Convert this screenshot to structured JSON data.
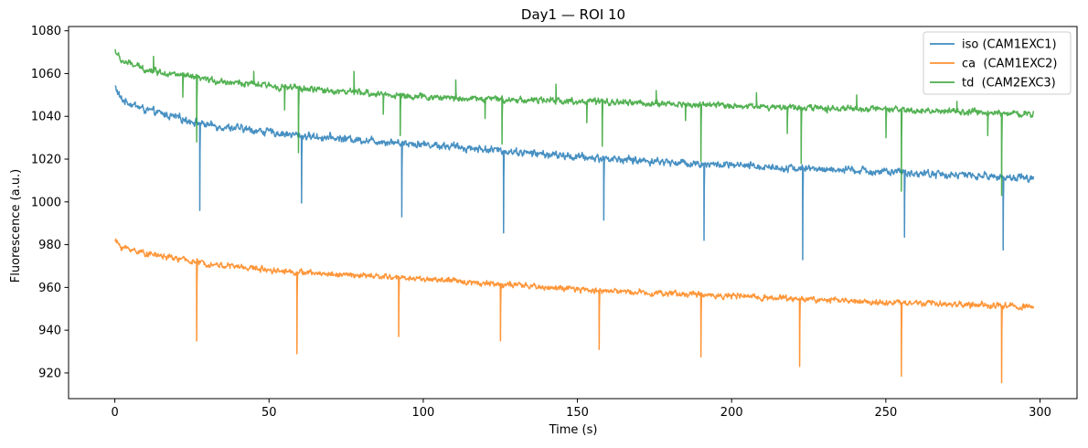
{
  "chart_data": {
    "type": "line",
    "title": "Day1 — ROI 10",
    "xlabel": "Time (s)",
    "ylabel": "Fluorescence (a.u.)",
    "xlim": [
      -15,
      312
    ],
    "ylim": [
      908,
      1082
    ],
    "x_ticks": [
      0,
      50,
      100,
      150,
      200,
      250,
      300
    ],
    "y_ticks": [
      920,
      940,
      960,
      980,
      1000,
      1020,
      1040,
      1060,
      1080
    ],
    "x_tick_labels": [
      "0",
      "50",
      "100",
      "150",
      "200",
      "250",
      "300"
    ],
    "y_tick_labels": [
      "920",
      "940",
      "960",
      "980",
      "1000",
      "1020",
      "1040",
      "1060",
      "1080"
    ],
    "legend_position": "top-right",
    "grid": false,
    "series": [
      {
        "name": "iso (CAM1EXC1)",
        "color": "#1f77b4",
        "baseline_x": [
          0,
          2,
          10,
          30,
          60,
          100,
          150,
          200,
          250,
          298
        ],
        "baseline_y": [
          1054,
          1048,
          1043,
          1036,
          1031,
          1027,
          1021,
          1017,
          1014,
          1011
        ],
        "noise_amplitude": 1.3,
        "dips": [
          {
            "x": 27.5,
            "y": 996
          },
          {
            "x": 60.5,
            "y": 999.5
          },
          {
            "x": 93,
            "y": 993
          },
          {
            "x": 126,
            "y": 985.5
          },
          {
            "x": 158.5,
            "y": 991.5
          },
          {
            "x": 191,
            "y": 982
          },
          {
            "x": 223,
            "y": 973
          },
          {
            "x": 256,
            "y": 983.5
          },
          {
            "x": 288,
            "y": 977.5
          }
        ]
      },
      {
        "name": "ca  (CAM1EXC2)",
        "color": "#ff7f0e",
        "baseline_x": [
          0,
          2,
          10,
          30,
          60,
          100,
          150,
          200,
          250,
          298
        ],
        "baseline_y": [
          982,
          979,
          976,
          971,
          967,
          964,
          959,
          956,
          953,
          951
        ],
        "noise_amplitude": 1.0,
        "dips": [
          {
            "x": 26.5,
            "y": 935
          },
          {
            "x": 59,
            "y": 929
          },
          {
            "x": 92,
            "y": 937
          },
          {
            "x": 125,
            "y": 935
          },
          {
            "x": 157,
            "y": 931
          },
          {
            "x": 190,
            "y": 927.5
          },
          {
            "x": 222,
            "y": 923
          },
          {
            "x": 255,
            "y": 918.5
          },
          {
            "x": 287.5,
            "y": 915.5
          }
        ]
      },
      {
        "name": "td  (CAM2EXC3)",
        "color": "#2ca02c",
        "baseline_x": [
          0,
          2,
          10,
          30,
          60,
          100,
          150,
          200,
          250,
          298
        ],
        "baseline_y": [
          1071,
          1066,
          1062,
          1057,
          1053,
          1049,
          1047,
          1045,
          1043,
          1041
        ],
        "noise_amplitude": 1.1,
        "dips": [
          {
            "x": 26.5,
            "y": 1028
          },
          {
            "x": 59.5,
            "y": 1023
          },
          {
            "x": 92.5,
            "y": 1031
          },
          {
            "x": 125.5,
            "y": 1027
          },
          {
            "x": 158,
            "y": 1026
          },
          {
            "x": 190,
            "y": 1019
          },
          {
            "x": 222.5,
            "y": 1018
          },
          {
            "x": 255,
            "y": 1005
          },
          {
            "x": 287.5,
            "y": 1003
          },
          {
            "x": 22,
            "y": 1049
          },
          {
            "x": 55,
            "y": 1043
          },
          {
            "x": 87,
            "y": 1041
          },
          {
            "x": 120,
            "y": 1039
          },
          {
            "x": 153,
            "y": 1037
          },
          {
            "x": 185,
            "y": 1038
          },
          {
            "x": 218,
            "y": 1032
          },
          {
            "x": 250,
            "y": 1030
          },
          {
            "x": 283,
            "y": 1031
          }
        ],
        "spikes": [
          {
            "x": 12.5,
            "y": 1068
          },
          {
            "x": 45,
            "y": 1061
          },
          {
            "x": 77.5,
            "y": 1061
          },
          {
            "x": 110.5,
            "y": 1057
          },
          {
            "x": 143,
            "y": 1055
          },
          {
            "x": 175.5,
            "y": 1052
          },
          {
            "x": 208,
            "y": 1051
          },
          {
            "x": 240.5,
            "y": 1050
          },
          {
            "x": 273,
            "y": 1047
          }
        ]
      }
    ]
  }
}
